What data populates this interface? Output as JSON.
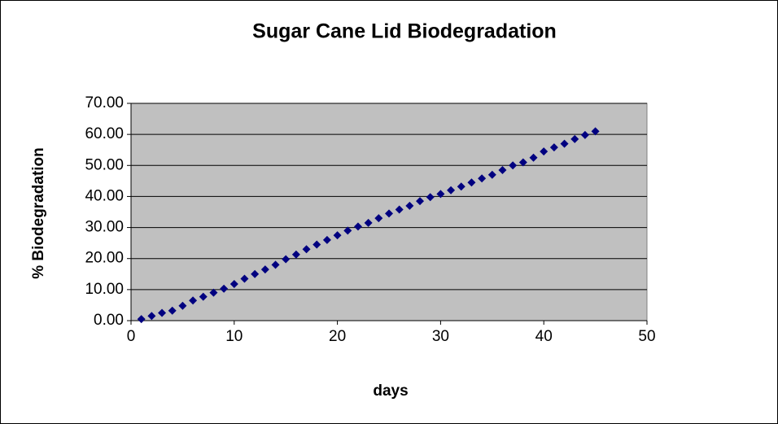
{
  "chart_data": {
    "type": "scatter",
    "title": "Sugar Cane Lid Biodegradation",
    "x_label": "days",
    "y_label": "% Biodegradation",
    "x": [
      1,
      2,
      3,
      4,
      5,
      6,
      7,
      8,
      9,
      10,
      11,
      12,
      13,
      14,
      15,
      16,
      17,
      18,
      19,
      20,
      21,
      22,
      23,
      24,
      25,
      26,
      27,
      28,
      29,
      30,
      31,
      32,
      33,
      34,
      35,
      36,
      37,
      38,
      39,
      40,
      41,
      42,
      43,
      44,
      45
    ],
    "values": [
      0.5,
      1.5,
      2.5,
      3.2,
      4.8,
      6.5,
      7.7,
      9,
      10.3,
      11.8,
      13.5,
      15,
      16.5,
      18,
      19.8,
      21.3,
      23,
      24.5,
      26,
      27.5,
      29,
      30.3,
      31.5,
      33,
      34.5,
      35.8,
      37,
      38.5,
      39.8,
      40.8,
      42,
      43.2,
      44.5,
      45.8,
      47,
      48.5,
      50,
      51,
      52.5,
      54.5,
      55.8,
      57,
      58.5,
      59.8,
      61
    ],
    "color": "#000080",
    "plot_background": "#c0c0c0",
    "grid": true,
    "xlim": [
      0,
      50
    ],
    "xticks": [
      0,
      10,
      20,
      30,
      40,
      50
    ],
    "ylim": [
      0,
      70
    ],
    "yticks": [
      {
        "value": 0,
        "label": "0.00"
      },
      {
        "value": 10,
        "label": "10.00"
      },
      {
        "value": 20,
        "label": "20.00"
      },
      {
        "value": 30,
        "label": "30.00"
      },
      {
        "value": 40,
        "label": "40.00"
      },
      {
        "value": 50,
        "label": "50.00"
      },
      {
        "value": 60,
        "label": "60.00"
      },
      {
        "value": 70,
        "label": "70.00"
      }
    ]
  }
}
